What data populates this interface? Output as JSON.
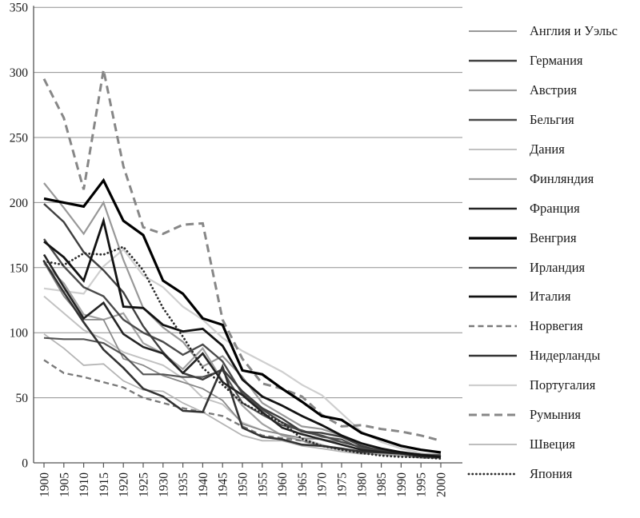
{
  "chart_data": {
    "type": "line",
    "title": "",
    "xlabel": "",
    "ylabel": "",
    "x": [
      1900,
      1905,
      1910,
      1915,
      1920,
      1925,
      1930,
      1935,
      1940,
      1945,
      1950,
      1955,
      1960,
      1965,
      1970,
      1975,
      1980,
      1985,
      1990,
      1995,
      2000
    ],
    "x_tick_labels": [
      "1900",
      "1905",
      "1910",
      "1915",
      "1920",
      "1925",
      "1930",
      "1935",
      "1940",
      "1945",
      "1950",
      "1955",
      "1960",
      "1965",
      "1970",
      "1975",
      "1980",
      "1985",
      "1990",
      "1995",
      "2000"
    ],
    "y_ticks": [
      0,
      50,
      100,
      150,
      200,
      250,
      300,
      350
    ],
    "y_tick_labels": [
      "0",
      "50",
      "100",
      "150",
      "200",
      "250",
      "300",
      "350"
    ],
    "ylim": [
      0,
      350
    ],
    "grid": "horizontal",
    "legend_position": "right",
    "series": [
      {
        "name": "Англия и Уэльс",
        "color": "#8a8a8a",
        "width": 1.8,
        "dash": "",
        "values": [
          154,
          128,
          110,
          110,
          80,
          75,
          67,
          62,
          57,
          48,
          30,
          25,
          22,
          19,
          18,
          16,
          12,
          9.4,
          7.9,
          6.2,
          5.6
        ]
      },
      {
        "name": "Германия",
        "color": "#3f3f3f",
        "width": 2.4,
        "dash": "",
        "values": [
          199,
          185,
          162,
          148,
          131,
          105,
          85,
          69,
          64,
          72,
          55,
          42,
          34,
          24,
          23,
          20,
          13,
          9.1,
          7,
          5.3,
          4.4
        ]
      },
      {
        "name": "Австрия",
        "color": "#989898",
        "width": 2.2,
        "dash": "",
        "values": [
          215,
          196,
          176,
          200,
          156,
          119,
          104,
          93,
          74,
          82,
          66,
          46,
          37,
          28,
          26,
          21,
          14,
          11,
          7.8,
          5.4,
          4.8
        ]
      },
      {
        "name": "Бельгия",
        "color": "#4a4a4a",
        "width": 2.4,
        "dash": "",
        "values": [
          172,
          151,
          135,
          128,
          110,
          100,
          93,
          83,
          91,
          78,
          53,
          41,
          31,
          24,
          21,
          16,
          12,
          9.8,
          8,
          6,
          4.8
        ]
      },
      {
        "name": "Дания",
        "color": "#c2c2c2",
        "width": 2.0,
        "dash": "",
        "values": [
          128,
          115,
          102,
          95,
          85,
          80,
          75,
          65,
          50,
          45,
          31,
          25,
          22,
          19,
          14,
          10,
          8.4,
          7.9,
          7.5,
          5.1,
          5.3
        ]
      },
      {
        "name": "Финляндия",
        "color": "#a2a2a2",
        "width": 2.2,
        "dash": "",
        "values": [
          153,
          138,
          114,
          110,
          115,
          92,
          84,
          72,
          88,
          63,
          44,
          30,
          21,
          17,
          13,
          10,
          7.6,
          6.3,
          5.6,
          3.9,
          3.8
        ]
      },
      {
        "name": "Франция",
        "color": "#242424",
        "width": 2.6,
        "dash": "",
        "values": [
          160,
          135,
          111,
          123,
          99,
          89,
          84,
          69,
          84,
          62,
          52,
          39,
          27,
          22,
          18,
          14,
          10,
          8.3,
          7.3,
          4.9,
          4.4
        ]
      },
      {
        "name": "Венгрия",
        "color": "#000000",
        "width": 3.2,
        "dash": "",
        "values": [
          203,
          200,
          197,
          217,
          186,
          175,
          140,
          130,
          111,
          106,
          71,
          68,
          57,
          47,
          36,
          33,
          23,
          18,
          13,
          10,
          8
        ]
      },
      {
        "name": "Ирландия",
        "color": "#555555",
        "width": 2.2,
        "dash": "",
        "values": [
          96,
          95,
          95,
          92,
          83,
          68,
          68,
          66,
          66,
          71,
          46,
          37,
          29,
          25,
          20,
          18,
          11,
          8.8,
          8.2,
          6.4,
          6.2
        ]
      },
      {
        "name": "Италия",
        "color": "#121212",
        "width": 2.8,
        "dash": "",
        "values": [
          170,
          158,
          140,
          186,
          120,
          119,
          106,
          101,
          103,
          90,
          64,
          51,
          44,
          36,
          29,
          21,
          15,
          11,
          8.2,
          6.2,
          4.5
        ]
      },
      {
        "name": "Норвегия",
        "color": "#7a7a7a",
        "width": 2.4,
        "dash": "7 4.5",
        "values": [
          79,
          69,
          66,
          62,
          58,
          50,
          46,
          42,
          39,
          36,
          28,
          21,
          19,
          17,
          13,
          11,
          8.1,
          8.5,
          7,
          4,
          3.8
        ]
      },
      {
        "name": "Нидерланды",
        "color": "#333333",
        "width": 2.6,
        "dash": "",
        "values": [
          155,
          131,
          108,
          87,
          73,
          57,
          51,
          40,
          39,
          74,
          27,
          20,
          18,
          14,
          13,
          11,
          8.6,
          8,
          7.1,
          5.5,
          5.1
        ]
      },
      {
        "name": "Португалия",
        "color": "#cfcfcf",
        "width": 2.2,
        "dash": "",
        "values": [
          134,
          132,
          130,
          151,
          164,
          144,
          135,
          120,
          110,
          96,
          86,
          78,
          70,
          60,
          52,
          38,
          24,
          16,
          11,
          7.5,
          5.5
        ]
      },
      {
        "name": "Румыния",
        "color": "#878787",
        "width": 3.0,
        "dash": "10 6",
        "values": [
          295,
          265,
          210,
          302,
          228,
          181,
          176,
          183,
          184,
          110,
          80,
          61,
          57,
          51,
          37,
          28,
          29,
          26,
          24,
          21,
          17
        ]
      },
      {
        "name": "Швеция",
        "color": "#b5b5b5",
        "width": 1.8,
        "dash": "",
        "values": [
          99,
          88,
          75,
          76,
          63,
          56,
          55,
          46,
          39,
          30,
          21,
          17,
          17,
          13,
          11,
          8.6,
          6.9,
          6.8,
          6,
          4.1,
          3.4
        ]
      },
      {
        "name": "Япония",
        "color": "#2b2b2b",
        "width": 2.8,
        "dash": "0.1 4.6",
        "dotted": true,
        "values": [
          155,
          152,
          161,
          160,
          166,
          148,
          119,
          97,
          73,
          60,
          46,
          38,
          31,
          18.5,
          13,
          10,
          7.5,
          5.5,
          4.6,
          4.3,
          3.2
        ]
      }
    ]
  }
}
